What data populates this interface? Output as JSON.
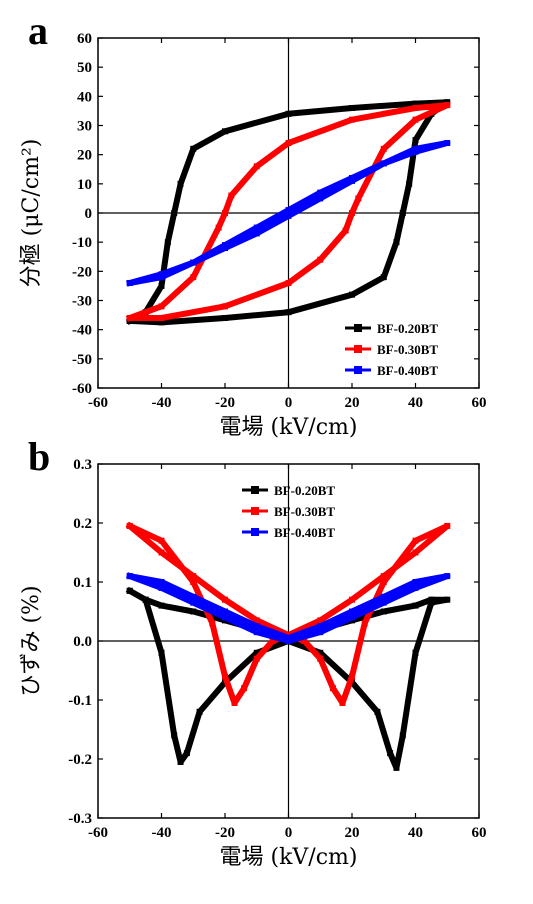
{
  "chart_data": [
    {
      "type": "line",
      "panel_label": "a",
      "xlabel": "電場 (kV/cm)",
      "ylabel": "分極 (μC/cm²)",
      "xlim": [
        -60,
        60
      ],
      "ylim": [
        -60,
        60
      ],
      "xticks": [
        -60,
        -40,
        -20,
        0,
        20,
        40,
        60
      ],
      "yticks": [
        -60,
        -50,
        -40,
        -30,
        -20,
        -10,
        0,
        10,
        20,
        30,
        40,
        50,
        60
      ],
      "legend_position": "bottom-right",
      "series": [
        {
          "name": "BF-0.20BT",
          "color": "#000000",
          "x": [
            -50,
            -45,
            -40,
            -38,
            -36,
            -34,
            -30,
            -20,
            0,
            20,
            40,
            50,
            45,
            40,
            38,
            36,
            34,
            30,
            20,
            0,
            -20,
            -40,
            -50
          ],
          "y": [
            -37,
            -34,
            -25,
            -10,
            0,
            10,
            22,
            28,
            34,
            36,
            37.5,
            38,
            34,
            25,
            10,
            0,
            -10,
            -22,
            -28,
            -34,
            -36,
            -37.5,
            -37
          ]
        },
        {
          "name": "BF-0.30BT",
          "color": "#ff0000",
          "x": [
            -50,
            -40,
            -30,
            -22,
            -20,
            -18,
            -10,
            0,
            20,
            40,
            50,
            40,
            30,
            22,
            20,
            18,
            10,
            0,
            -20,
            -40,
            -50
          ],
          "y": [
            -36,
            -32,
            -22,
            -5,
            0,
            6,
            16,
            24,
            32,
            36,
            37,
            32,
            22,
            5,
            0,
            -6,
            -16,
            -24,
            -32,
            -36,
            -36
          ]
        },
        {
          "name": "BF-0.40BT",
          "color": "#0000ff",
          "x": [
            -50,
            -40,
            -30,
            -20,
            -10,
            0,
            10,
            20,
            30,
            40,
            50,
            40,
            30,
            20,
            10,
            0,
            -10,
            -20,
            -30,
            -40,
            -50
          ],
          "y": [
            -24,
            -22,
            -17,
            -11,
            -5,
            1,
            7,
            12,
            17,
            21,
            24,
            22,
            17,
            11,
            5,
            -1,
            -7,
            -12,
            -17,
            -21,
            -24
          ]
        }
      ]
    },
    {
      "type": "line",
      "panel_label": "b",
      "xlabel": "電場 (kV/cm)",
      "ylabel": "ひずみ (%)",
      "xlim": [
        -60,
        60
      ],
      "ylim": [
        -0.3,
        0.3
      ],
      "xticks": [
        -60,
        -40,
        -20,
        0,
        20,
        40,
        60
      ],
      "yticks": [
        -0.3,
        -0.2,
        -0.1,
        0.0,
        0.1,
        0.2,
        0.3
      ],
      "legend_position": "top-center",
      "series": [
        {
          "name": "BF-0.20BT",
          "color": "#000000",
          "x": [
            -50,
            -45,
            -40,
            -36,
            -34,
            -32,
            -28,
            -20,
            -10,
            0,
            10,
            20,
            28,
            32,
            34,
            36,
            40,
            45,
            50,
            45,
            40,
            30,
            20,
            10,
            0,
            -10,
            -20,
            -30,
            -40,
            -45,
            -50
          ],
          "y": [
            0.085,
            0.07,
            -0.02,
            -0.16,
            -0.205,
            -0.19,
            -0.12,
            -0.07,
            -0.02,
            0.0,
            -0.02,
            -0.07,
            -0.12,
            -0.19,
            -0.215,
            -0.16,
            -0.02,
            0.065,
            0.07,
            0.07,
            0.06,
            0.05,
            0.035,
            0.02,
            0.005,
            0.02,
            0.035,
            0.05,
            0.06,
            0.07,
            0.085
          ]
        },
        {
          "name": "BF-0.30BT",
          "color": "#ff0000",
          "x": [
            -50,
            -40,
            -30,
            -24,
            -20,
            -17,
            -14,
            -10,
            -5,
            0,
            5,
            10,
            14,
            17,
            20,
            24,
            30,
            40,
            50,
            40,
            30,
            20,
            10,
            0,
            -10,
            -20,
            -30,
            -40,
            -50
          ],
          "y": [
            0.195,
            0.17,
            0.1,
            0.03,
            -0.06,
            -0.105,
            -0.08,
            -0.03,
            0.0,
            0.01,
            0.0,
            -0.03,
            -0.08,
            -0.105,
            -0.06,
            0.03,
            0.1,
            0.17,
            0.195,
            0.15,
            0.11,
            0.07,
            0.035,
            0.01,
            0.035,
            0.07,
            0.11,
            0.15,
            0.195
          ]
        },
        {
          "name": "BF-0.40BT",
          "color": "#0000ff",
          "x": [
            -50,
            -40,
            -30,
            -20,
            -10,
            0,
            10,
            20,
            30,
            40,
            50,
            40,
            30,
            20,
            10,
            0,
            -10,
            -20,
            -30,
            -40,
            -50
          ],
          "y": [
            0.11,
            0.09,
            0.065,
            0.04,
            0.015,
            0.0,
            0.015,
            0.04,
            0.065,
            0.09,
            0.11,
            0.1,
            0.075,
            0.05,
            0.025,
            0.005,
            0.025,
            0.05,
            0.075,
            0.1,
            0.11
          ]
        }
      ]
    }
  ]
}
